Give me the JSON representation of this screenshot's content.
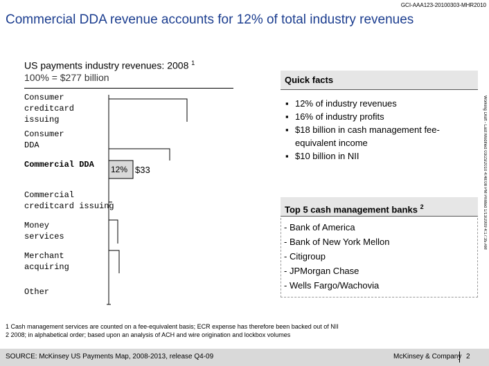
{
  "header": {
    "doc_id": "GCI-AAA123-20100303-MHR2010",
    "title": "Commercial DDA revenue accounts for 12% of total industry revenues"
  },
  "chart": {
    "title": "US payments industry revenues: 2008",
    "title_note": "1",
    "subtitle": "100% = $277 billion",
    "labels": [
      "Consumer creditcard issuing",
      "Consumer DDA",
      "Commercial DDA",
      "Commercial creditcard issuing",
      "Money services",
      "Merchant acquiring",
      "Other"
    ],
    "highlight_share": "12%",
    "highlight_value": "$33"
  },
  "quick_facts": {
    "title": "Quick facts",
    "items": [
      "12% of industry revenues",
      "16% of industry profits",
      "$18 billion in cash management fee-equivalent income",
      "$10 billion in NII"
    ]
  },
  "banks": {
    "title": "Top 5 cash management banks",
    "title_note": "2",
    "items": [
      "- Bank of America",
      "- Bank of New York Mellon",
      "- Citigroup",
      "- JPMorgan Chase",
      "- Wells Fargo/Wachovia"
    ]
  },
  "side_note": "Working Draft - Last Modified 03/23/2010 4:48:08 PM     Printed 1/13/2009 4:17:35 AM",
  "footnotes": [
    "1 Cash management services are counted on a fee-equivalent basis; ECR expense has therefore been backed out of NII",
    "2 2008; in alphabetical order; based upon an analysis of ACH and wire origination and lockbox volumes"
  ],
  "footer": {
    "source": "SOURCE: McKinsey US Payments Map, 2008-2013, release Q4-09",
    "company": "McKinsey & Company",
    "page": "2"
  }
}
